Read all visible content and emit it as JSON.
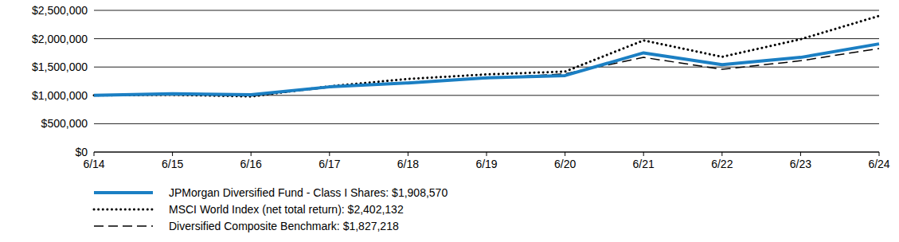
{
  "chart_data": {
    "type": "line",
    "categories": [
      "6/14",
      "6/15",
      "6/16",
      "6/17",
      "6/18",
      "6/19",
      "6/20",
      "6/21",
      "6/22",
      "6/23",
      "6/24"
    ],
    "series": [
      {
        "name": "JPMorgan Diversified Fund - Class I Shares: $1,908,570",
        "color": "#1b7fc3",
        "line_style": "solid",
        "values": [
          1000000,
          1030000,
          1010000,
          1150000,
          1220000,
          1310000,
          1350000,
          1750000,
          1540000,
          1670000,
          1908570
        ]
      },
      {
        "name": "MSCI World Index (net total return): $2,402,132",
        "color": "#000000",
        "line_style": "dotted",
        "values": [
          1000000,
          1010000,
          980000,
          1160000,
          1290000,
          1370000,
          1420000,
          1970000,
          1680000,
          1990000,
          2402132
        ]
      },
      {
        "name": "Diversified Composite Benchmark: $1,827,218",
        "color": "#000000",
        "line_style": "dashed",
        "values": [
          1000000,
          1020000,
          990000,
          1140000,
          1230000,
          1300000,
          1380000,
          1670000,
          1460000,
          1610000,
          1827218
        ]
      }
    ],
    "ylim": [
      0,
      2500000
    ],
    "yticks": [
      {
        "value": 0,
        "label": "$0"
      },
      {
        "value": 500000,
        "label": "$500,000"
      },
      {
        "value": 1000000,
        "label": "$1,000,000"
      },
      {
        "value": 1500000,
        "label": "$1,500,000"
      },
      {
        "value": 2000000,
        "label": "$2,000,000"
      },
      {
        "value": 2500000,
        "label": "$2,500,000"
      }
    ],
    "grid": true,
    "legend": "bottom-left"
  }
}
